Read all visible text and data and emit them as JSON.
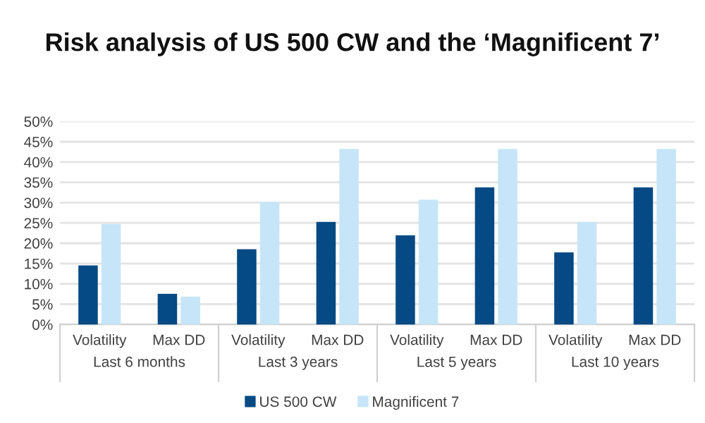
{
  "chart_data": {
    "type": "bar",
    "title": "Risk analysis of US 500 CW and the ‘Magnificent 7’",
    "categories": [
      "Volatility",
      "Max DD",
      "Volatility",
      "Max DD",
      "Volatility",
      "Max DD",
      "Volatility",
      "Max DD"
    ],
    "annotations": [
      "Last 6 months",
      "Last 3 years",
      "Last 5 years",
      "Last 10 years"
    ],
    "series": [
      {
        "name": "US 500 CW",
        "color": "#054a84",
        "values": [
          14.3,
          7.3,
          18.3,
          25,
          21.7,
          33.5,
          17.5,
          33.5
        ]
      },
      {
        "name": "Magnificent 7",
        "color": "#c6e5f8",
        "values": [
          24.5,
          6.6,
          29.9,
          43,
          30.5,
          43,
          25,
          43
        ]
      }
    ],
    "ylim": [
      0,
      50
    ],
    "yticks": [
      {
        "value": 0,
        "label": "0%"
      },
      {
        "value": 5,
        "label": "5%"
      },
      {
        "value": 10,
        "label": "10%"
      },
      {
        "value": 15,
        "label": "15%"
      },
      {
        "value": 20,
        "label": "20%"
      },
      {
        "value": 25,
        "label": "25%"
      },
      {
        "value": 30,
        "label": "30%"
      },
      {
        "value": 35,
        "label": "35%"
      },
      {
        "value": 40,
        "label": "40%"
      },
      {
        "value": 45,
        "label": "45%"
      },
      {
        "value": 50,
        "label": "50%"
      }
    ],
    "grid": "y",
    "legend": "bottom"
  }
}
